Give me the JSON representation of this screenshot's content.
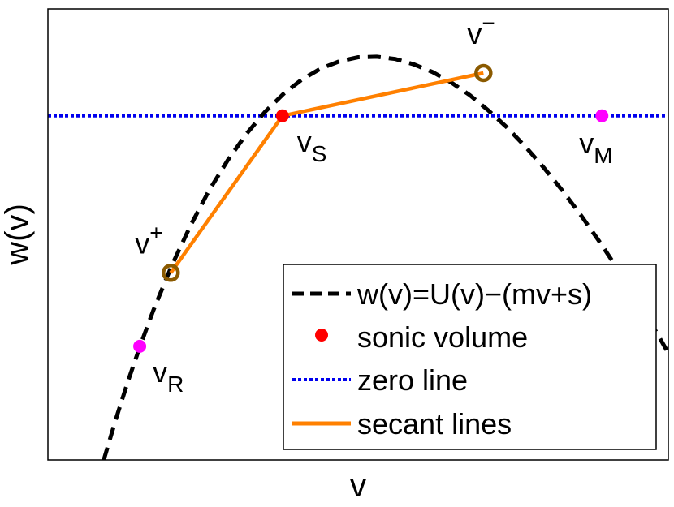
{
  "chart_data": {
    "type": "line",
    "xlabel": "v",
    "ylabel": "w(v)",
    "xlim": [
      0,
      1
    ],
    "ylim": [
      0,
      1
    ],
    "ticks": "none",
    "grid": false,
    "legend_position": "bottom-right",
    "curve": {
      "name": "w(v)=U(v)−(mv+s)",
      "color": "#000000",
      "style": "dashed",
      "x": [
        0.09,
        0.11,
        0.13,
        0.15,
        0.17,
        0.2,
        0.23,
        0.26,
        0.29,
        0.32,
        0.35,
        0.38,
        0.41,
        0.44,
        0.47,
        0.5,
        0.53,
        0.56,
        0.59,
        0.62,
        0.65,
        0.68,
        0.71,
        0.74,
        0.77,
        0.8,
        0.83,
        0.86,
        0.89,
        0.92,
        0.95,
        0.98,
        1.0
      ],
      "y": [
        0.0,
        0.092,
        0.178,
        0.258,
        0.332,
        0.432,
        0.52,
        0.598,
        0.665,
        0.723,
        0.772,
        0.812,
        0.844,
        0.868,
        0.884,
        0.893,
        0.894,
        0.889,
        0.877,
        0.86,
        0.837,
        0.809,
        0.775,
        0.737,
        0.694,
        0.647,
        0.596,
        0.541,
        0.482,
        0.42,
        0.354,
        0.285,
        0.237
      ]
    },
    "zero_line": {
      "name": "zero line",
      "y": 0.763,
      "color": "#0000ee",
      "style": "dotted"
    },
    "secant_lines": {
      "name": "secant lines",
      "color": "#ff8000",
      "x": [
        0.198,
        0.378,
        0.702
      ],
      "y": [
        0.415,
        0.763,
        0.858
      ]
    },
    "points": [
      {
        "id": "vS",
        "x": 0.378,
        "y": 0.763,
        "color": "#ff0000",
        "style": "filled",
        "label": "v",
        "sub": "S"
      },
      {
        "id": "vplus",
        "x": 0.198,
        "y": 0.415,
        "color": "#8b5a00",
        "style": "ring",
        "label": "v",
        "sup": "+"
      },
      {
        "id": "vminus",
        "x": 0.702,
        "y": 0.858,
        "color": "#8b5a00",
        "style": "ring",
        "label": "v",
        "sup": "−"
      },
      {
        "id": "vR",
        "x": 0.148,
        "y": 0.252,
        "color": "#ff00ff",
        "style": "filled",
        "label": "v",
        "sub": "R"
      },
      {
        "id": "vM",
        "x": 0.893,
        "y": 0.763,
        "color": "#ff00ff",
        "style": "filled",
        "label": "v",
        "sub": "M"
      }
    ],
    "legend": [
      {
        "label": "w(v)=U(v)−(mv+s)",
        "kind": "dashed",
        "color": "#000000"
      },
      {
        "label": "sonic volume",
        "kind": "marker",
        "color": "#ff0000"
      },
      {
        "label": "zero line",
        "kind": "dotted",
        "color": "#0000ee"
      },
      {
        "label": "secant lines",
        "kind": "solid",
        "color": "#ff8000"
      }
    ]
  }
}
